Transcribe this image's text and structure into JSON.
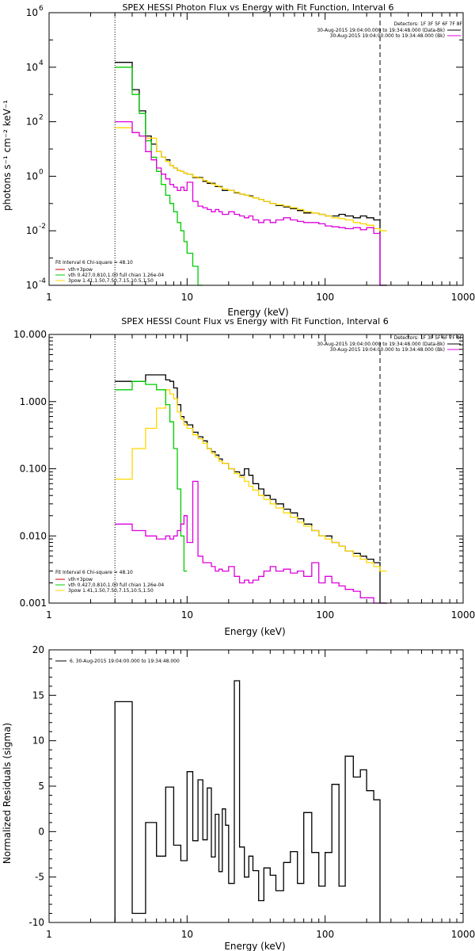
{
  "chart_data": [
    {
      "type": "line",
      "title": "SPEX HESSI Photon Flux vs Energy with Fit Function, Interval 6",
      "xlabel": "Energy (keV)",
      "ylabel": "photons s⁻¹ cm⁻² keV⁻¹",
      "xscale": "log",
      "yscale": "log",
      "xlim": [
        1,
        1000
      ],
      "ylim": [
        0.0001,
        1000000
      ],
      "xticks": [
        "1",
        "10",
        "100",
        "1000"
      ],
      "yticks": [
        {
          "base": "10",
          "exp": "-4"
        },
        {
          "base": "10",
          "exp": "-2"
        },
        {
          "base": "10",
          "exp": "0"
        },
        {
          "base": "10",
          "exp": "2"
        },
        {
          "base": "10",
          "exp": "4"
        },
        {
          "base": "10",
          "exp": "6"
        }
      ],
      "vlines": [
        {
          "x": 3.0,
          "style": "dotted"
        },
        {
          "x": 250,
          "style": "dashed"
        }
      ],
      "legend_topright": [
        "Detectors: 1F 3F 5F 6F 7F 8F",
        "30-Aug-2015 19:04:00.000 to 19:34:48.000 (Data-Bk)",
        "30-Aug-2015 19:04:00.000 to 19:34:48.000 (Bk)"
      ],
      "legend_bottomleft": [
        "Fit Interval 6   Chi-square = 48.10",
        "vth+3pow",
        "vth 0.427,0.810,1.00  full chian 1.26e-04",
        "3pow 1.41,1.50,7.50,7.15,10.5,1.50"
      ],
      "series": [
        {
          "color": "#000000",
          "x": [
            3.0,
            3.5,
            4.0,
            4.5,
            5.0,
            5.5,
            6.0,
            6.5,
            7.0,
            7.5,
            8.0,
            8.5,
            9.0,
            9.5,
            10,
            11,
            12,
            13,
            14,
            15,
            16,
            17,
            18,
            20,
            22,
            24,
            26,
            28,
            30,
            33,
            36,
            40,
            44,
            50,
            56,
            63,
            70,
            80,
            90,
            100,
            112,
            126,
            140,
            160,
            180,
            200,
            225,
            250,
            280
          ],
          "y": [
            15000,
            15000,
            1500,
            250,
            30,
            15,
            8,
            5,
            4,
            2.5,
            2,
            1.6,
            1.5,
            1.3,
            1.2,
            0.9,
            0.9,
            0.65,
            0.55,
            0.55,
            0.42,
            0.42,
            0.3,
            0.3,
            0.25,
            0.22,
            0.2,
            0.19,
            0.16,
            0.14,
            0.12,
            0.1,
            0.085,
            0.075,
            0.065,
            0.055,
            0.045,
            0.045,
            0.04,
            0.035,
            0.035,
            0.04,
            0.035,
            0.03,
            0.035,
            0.03,
            0.025,
            0.0001,
            0.0001
          ]
        },
        {
          "color": "#ffd700",
          "x": [
            3.0,
            3.5,
            4.0,
            4.5,
            5.0,
            5.5,
            6.0,
            6.5,
            7.0,
            7.5,
            8.0,
            8.5,
            9.0,
            9.5,
            10,
            11,
            12,
            13,
            14,
            15,
            16,
            17,
            18,
            20,
            22,
            24,
            26,
            28,
            30,
            33,
            36,
            40,
            44,
            50,
            56,
            63,
            70,
            80,
            90,
            100,
            112,
            126,
            140,
            160,
            180,
            200,
            225,
            250,
            280
          ],
          "y": [
            60,
            60,
            40,
            30,
            25,
            25,
            8,
            5,
            3.5,
            2.5,
            2,
            1.6,
            1.5,
            1.3,
            1.2,
            0.95,
            0.85,
            0.7,
            0.6,
            0.52,
            0.45,
            0.4,
            0.34,
            0.3,
            0.26,
            0.22,
            0.2,
            0.18,
            0.16,
            0.14,
            0.12,
            0.1,
            0.09,
            0.08,
            0.07,
            0.06,
            0.05,
            0.045,
            0.04,
            0.035,
            0.03,
            0.028,
            0.025,
            0.02,
            0.018,
            0.016,
            0.012,
            0.01,
            0.0001
          ]
        },
        {
          "color": "#00cc00",
          "x": [
            3.0,
            3.5,
            4.0,
            4.5,
            5.0,
            5.5,
            6.0,
            6.5,
            7.0,
            7.5,
            8.0,
            8.5,
            9.0,
            9.5,
            10,
            11,
            12,
            13
          ],
          "y": [
            10000,
            10000,
            1000,
            200,
            20,
            5,
            1.5,
            0.5,
            0.2,
            0.1,
            0.05,
            0.02,
            0.01,
            0.004,
            0.0015,
            0.0005,
            0.0001,
            0.0001
          ]
        },
        {
          "color": "#dd00dd",
          "x": [
            3.0,
            3.5,
            4.0,
            4.5,
            5.0,
            5.5,
            6.0,
            6.5,
            7.0,
            7.5,
            8.0,
            8.5,
            9.0,
            9.5,
            10,
            11,
            12,
            13,
            14,
            15,
            16,
            17,
            18,
            20,
            22,
            24,
            26,
            28,
            30,
            33,
            36,
            40,
            44,
            50,
            56,
            63,
            70,
            80,
            90,
            100,
            112,
            126,
            140,
            160,
            180,
            200,
            225,
            250,
            280
          ],
          "y": [
            100,
            100,
            40,
            30,
            8,
            4,
            2,
            1.2,
            0.8,
            0.5,
            0.4,
            0.3,
            0.4,
            0.3,
            0.6,
            0.12,
            0.08,
            0.07,
            0.06,
            0.05,
            0.06,
            0.05,
            0.04,
            0.05,
            0.04,
            0.035,
            0.03,
            0.035,
            0.025,
            0.02,
            0.025,
            0.02,
            0.025,
            0.03,
            0.025,
            0.022,
            0.02,
            0.02,
            0.018,
            0.015,
            0.014,
            0.013,
            0.012,
            0.013,
            0.011,
            0.013,
            0.008,
            0.0001,
            0.0001
          ]
        }
      ]
    },
    {
      "type": "line",
      "title": "SPEX HESSI Count Flux vs Energy with Fit Function, Interval 6",
      "xlabel": "Energy (keV)",
      "ylabel": "",
      "xscale": "log",
      "yscale": "log",
      "xlim": [
        1,
        1000
      ],
      "ylim": [
        0.001,
        10
      ],
      "xticks": [
        "1",
        "10",
        "100",
        "1000"
      ],
      "yticks": [
        "0.001",
        "0.010",
        "0.100",
        "1.000",
        "10.000"
      ],
      "vlines": [
        {
          "x": 3.0,
          "style": "dotted"
        },
        {
          "x": 250,
          "style": "dashed"
        }
      ],
      "legend_topright": [
        "Detectors: 1F 3F 5F 6F 7F 8F",
        "30-Aug-2015 19:04:00.000 to 19:34:48.000 (Data-Bk)",
        "30-Aug-2015 19:04:00.000 to 19:34:48.000 (Bk)"
      ],
      "legend_bottomleft": [
        "Fit Interval 6   Chi-square = 48.10",
        "vth+3pow",
        "vth 0.427,0.810,1.00  full chian 1.26e-04",
        "3pow 1.41,1.50,7.50,7.15,10.5,1.50"
      ],
      "series": [
        {
          "color": "#000000",
          "x": [
            3.0,
            4.0,
            5.0,
            6.0,
            7.0,
            7.5,
            8.0,
            8.5,
            9.0,
            9.5,
            10,
            11,
            12,
            13,
            14,
            15,
            16,
            17,
            18,
            20,
            22,
            24,
            26,
            28,
            30,
            33,
            36,
            40,
            44,
            50,
            56,
            63,
            70,
            80,
            90,
            100,
            112,
            126,
            140,
            160,
            180,
            200,
            225,
            250,
            280
          ],
          "y": [
            2.0,
            2.0,
            2.5,
            2.5,
            2.1,
            2.0,
            1.6,
            0.9,
            0.6,
            0.5,
            0.45,
            0.35,
            0.3,
            0.26,
            0.2,
            0.18,
            0.16,
            0.14,
            0.12,
            0.1,
            0.09,
            0.08,
            0.1,
            0.08,
            0.06,
            0.05,
            0.04,
            0.035,
            0.03,
            0.025,
            0.022,
            0.018,
            0.015,
            0.012,
            0.01,
            0.01,
            0.008,
            0.007,
            0.006,
            0.0055,
            0.005,
            0.0045,
            0.004,
            0.001,
            0.001
          ]
        },
        {
          "color": "#ffd700",
          "x": [
            3.0,
            4.0,
            5.0,
            6.0,
            7.0,
            7.5,
            8.0,
            8.5,
            9.0,
            9.5,
            10,
            11,
            12,
            13,
            14,
            15,
            16,
            17,
            18,
            20,
            22,
            24,
            26,
            28,
            30,
            33,
            36,
            40,
            44,
            50,
            56,
            63,
            70,
            80,
            90,
            100,
            112,
            126,
            140,
            160,
            180,
            200,
            225,
            250,
            280
          ],
          "y": [
            0.07,
            0.2,
            0.4,
            0.8,
            1.5,
            1.3,
            1.1,
            0.7,
            0.55,
            0.45,
            0.4,
            0.32,
            0.28,
            0.24,
            0.2,
            0.17,
            0.15,
            0.13,
            0.12,
            0.1,
            0.085,
            0.075,
            0.065,
            0.055,
            0.048,
            0.04,
            0.035,
            0.03,
            0.026,
            0.022,
            0.019,
            0.016,
            0.014,
            0.012,
            0.01,
            0.009,
            0.008,
            0.007,
            0.006,
            0.005,
            0.0045,
            0.004,
            0.0035,
            0.003,
            0.001
          ]
        },
        {
          "color": "#00cc00",
          "x": [
            3.0,
            4.0,
            5.0,
            6.0,
            7.0,
            7.5,
            8.0,
            8.5,
            9.0,
            9.5,
            10
          ],
          "y": [
            1.5,
            2.0,
            1.8,
            1.5,
            0.9,
            0.5,
            0.2,
            0.05,
            0.01,
            0.003,
            0.001
          ]
        },
        {
          "color": "#dd00dd",
          "x": [
            3.0,
            4.0,
            5.0,
            6.0,
            7.0,
            7.5,
            8.0,
            8.5,
            9.0,
            9.5,
            10,
            11,
            12,
            13,
            14,
            15,
            16,
            17,
            18,
            20,
            22,
            24,
            26,
            28,
            30,
            33,
            36,
            40,
            44,
            50,
            56,
            63,
            70,
            80,
            90,
            100,
            112,
            126,
            140,
            160,
            180,
            200,
            225,
            250,
            280
          ],
          "y": [
            0.015,
            0.012,
            0.01,
            0.009,
            0.01,
            0.009,
            0.01,
            0.012,
            0.015,
            0.02,
            0.008,
            0.065,
            0.005,
            0.004,
            0.004,
            0.0035,
            0.003,
            0.0032,
            0.003,
            0.0035,
            0.0025,
            0.002,
            0.0022,
            0.002,
            0.0022,
            0.0025,
            0.003,
            0.0035,
            0.003,
            0.0032,
            0.0028,
            0.003,
            0.0025,
            0.004,
            0.002,
            0.0025,
            0.002,
            0.0018,
            0.0016,
            0.0015,
            0.0012,
            0.0012,
            0.001,
            0.001,
            0.001
          ]
        }
      ]
    },
    {
      "type": "line",
      "title": "",
      "xlabel": "Energy (keV)",
      "ylabel": "Normalized Residuals (sigma)",
      "xscale": "log",
      "yscale": "linear",
      "xlim": [
        1,
        1000
      ],
      "ylim": [
        -10,
        20
      ],
      "xticks": [
        "1",
        "10",
        "100",
        "1000"
      ],
      "yticks": [
        "-10",
        "-5",
        "0",
        "5",
        "10",
        "15",
        "20"
      ],
      "legend": "6. 30-Aug-2015 19:04:00.000 to 19:34:48.000",
      "series": [
        {
          "color": "#000000",
          "x": [
            3.0,
            4.0,
            5.0,
            6.0,
            7.0,
            8.0,
            9.0,
            10,
            11,
            12,
            13,
            14,
            15,
            16,
            17,
            18,
            19,
            20,
            22,
            24,
            26,
            28,
            30,
            33,
            36,
            40,
            44,
            50,
            56,
            63,
            70,
            80,
            90,
            100,
            112,
            126,
            140,
            160,
            180,
            200,
            225,
            250
          ],
          "y": [
            14.3,
            -9,
            1.0,
            -2.7,
            4.9,
            -1.5,
            -3.2,
            6.6,
            -1.0,
            5.7,
            -0.9,
            4.8,
            -2.8,
            1.9,
            -4.4,
            2.5,
            0.7,
            -5.7,
            16.6,
            -1.7,
            -5.0,
            -2.7,
            -4.3,
            -7.6,
            -4.0,
            -4.8,
            -6.5,
            -3.4,
            -2.2,
            -5.7,
            2.1,
            -2.3,
            -6.0,
            -2.3,
            5.2,
            -6.0,
            8.3,
            6.0,
            6.8,
            4.5,
            3.5,
            3.5
          ]
        }
      ]
    }
  ]
}
